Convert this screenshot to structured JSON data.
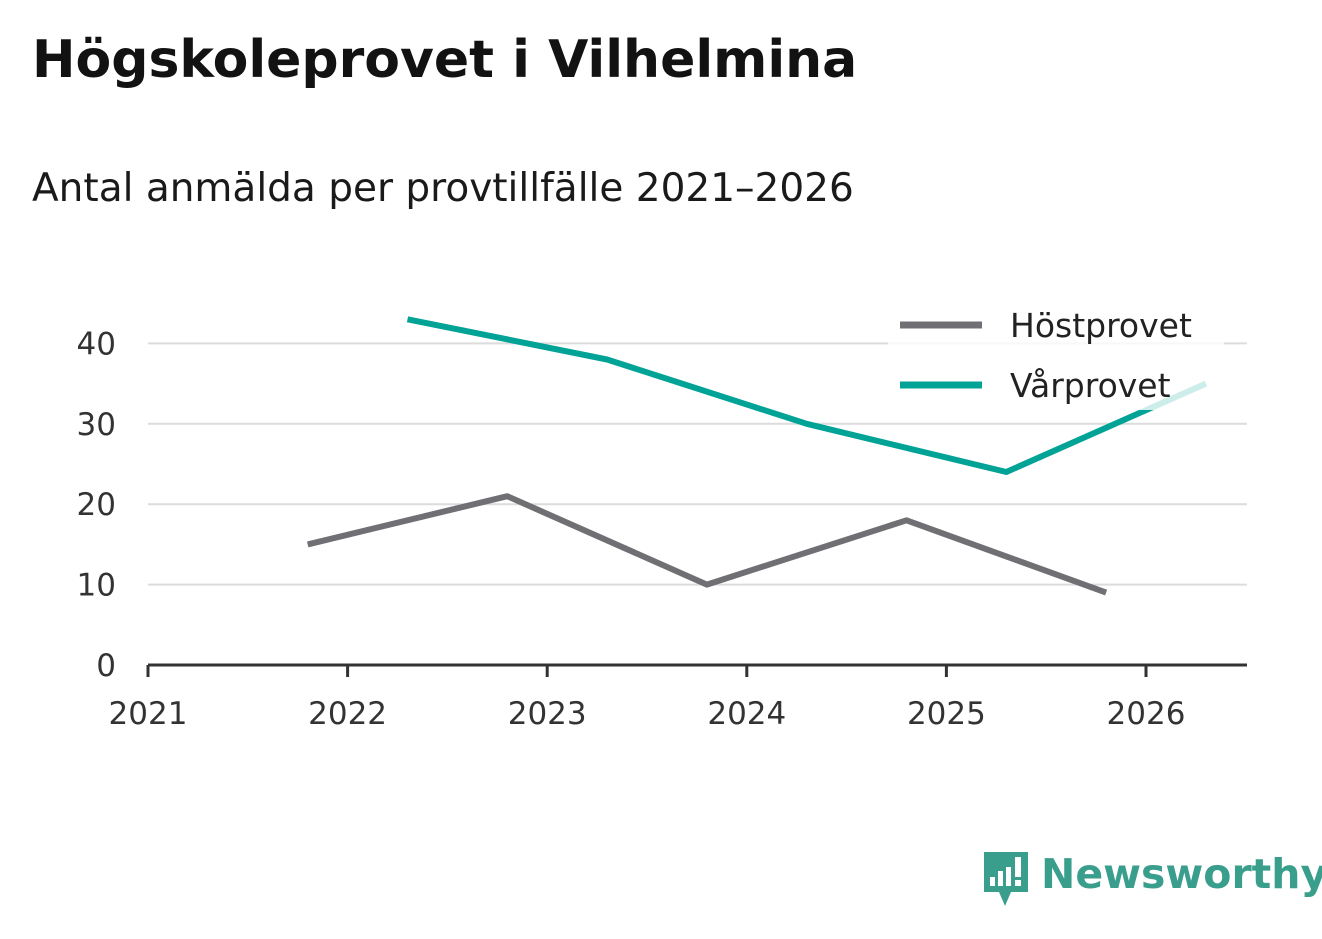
{
  "chart_data": {
    "type": "line",
    "title": "Högskoleprovet i Vilhelmina",
    "subtitle": "Antal anmälda per provtillfälle 2021–2026",
    "xlabel": "",
    "ylabel": "",
    "xlim": [
      2021,
      2026.5
    ],
    "ylim": [
      0,
      45
    ],
    "x_ticks": [
      "2021",
      "2022",
      "2023",
      "2024",
      "2025",
      "2026"
    ],
    "y_ticks": [
      "0",
      "10",
      "20",
      "30",
      "40"
    ],
    "grid": true,
    "legend_position": "top-right",
    "series": [
      {
        "name": "Höstprovet",
        "color": "#707074",
        "points": [
          {
            "x": 2021.8,
            "y": 15
          },
          {
            "x": 2022.8,
            "y": 21
          },
          {
            "x": 2023.8,
            "y": 10
          },
          {
            "x": 2024.8,
            "y": 18
          },
          {
            "x": 2025.8,
            "y": 9
          }
        ]
      },
      {
        "name": "Vårprovet",
        "color": "#00a396",
        "points": [
          {
            "x": 2022.3,
            "y": 43
          },
          {
            "x": 2023.3,
            "y": 38
          },
          {
            "x": 2024.3,
            "y": 30
          },
          {
            "x": 2025.3,
            "y": 24
          },
          {
            "x": 2026.3,
            "y": 35
          }
        ]
      }
    ]
  },
  "brand": {
    "name": "Newsworthy",
    "color": "#3a9e8c"
  }
}
